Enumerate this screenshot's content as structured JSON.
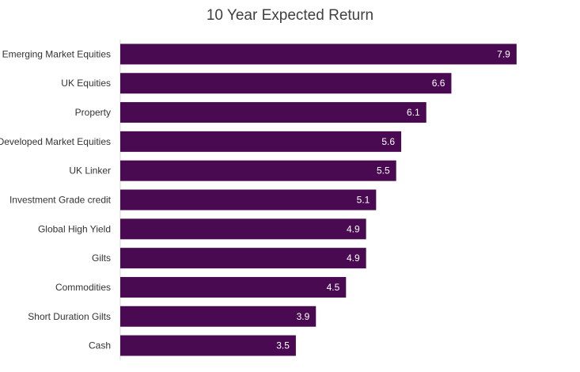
{
  "chart_data": {
    "type": "bar",
    "orientation": "horizontal",
    "title": "10 Year Expected Return",
    "xlabel": "",
    "ylabel": "",
    "categories": [
      "Emerging Market Equities",
      "UK Equities",
      "Property",
      "Developed Market Equities",
      "UK Linker",
      "Investment Grade credit",
      "Global High Yield",
      "Gilts",
      "Commodities",
      "Short Duration Gilts",
      "Cash"
    ],
    "values": [
      7.9,
      6.6,
      6.1,
      5.6,
      5.5,
      5.1,
      4.9,
      4.9,
      4.5,
      3.9,
      3.5
    ],
    "data_labels": [
      "7.9",
      "6.6",
      "6.1",
      "5.6",
      "5.5",
      "5.1",
      "4.9",
      "4.9",
      "4.5",
      "3.9",
      "3.5"
    ],
    "xlim": [
      0,
      8.5
    ],
    "grid": false,
    "legend": "none",
    "bar_color": "#4a0a52",
    "axis_color": "#d9d9d9"
  }
}
